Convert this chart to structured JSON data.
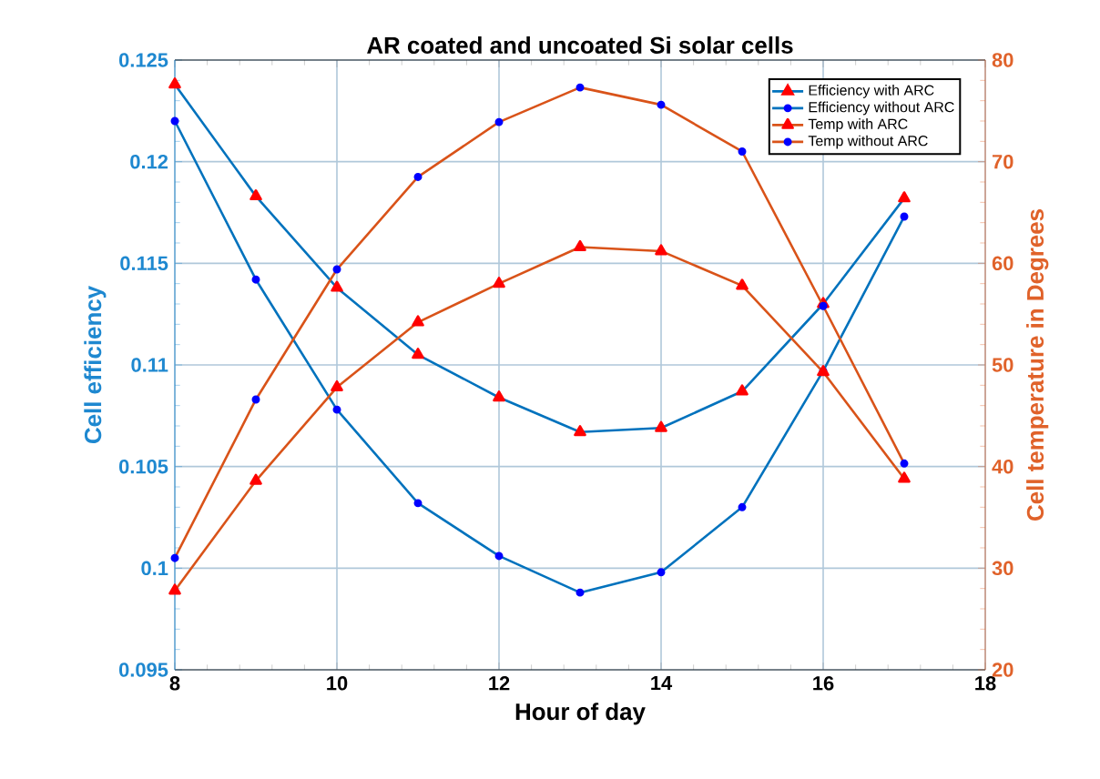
{
  "chart_data": {
    "type": "line",
    "title": "AR coated and uncoated Si solar cells",
    "xlabel": "Hour of day",
    "ylabel": "Cell efficiency",
    "y2label": "Cell temperature in Degrees",
    "x": [
      8,
      9,
      10,
      11,
      12,
      13,
      14,
      15,
      16,
      17
    ],
    "series": [
      {
        "name": "Efficiency with ARC",
        "color": "#0072bd",
        "marker": "triangle",
        "values": [
          0.1238,
          0.1183,
          0.1138,
          0.1105,
          0.1084,
          0.1067,
          0.1069,
          0.1087,
          0.113,
          0.1182
        ]
      },
      {
        "name": "Efficiency without ARC",
        "color": "#0072bd",
        "marker": "circle",
        "values": [
          0.122,
          0.1142,
          0.1078,
          0.1032,
          0.1006,
          0.0988,
          0.0998,
          0.103,
          0.1097,
          0.1173
        ]
      },
      {
        "name": "Temp with ARC",
        "color": "#d95319",
        "marker": "triangle",
        "axis": "y2",
        "values": [
          27.8,
          38.6,
          47.8,
          54.2,
          58.0,
          61.6,
          61.2,
          57.8,
          49.3,
          38.8
        ]
      },
      {
        "name": "Temp without ARC",
        "color": "#d95319",
        "marker": "circle",
        "axis": "y2",
        "values": [
          31.0,
          46.6,
          59.4,
          68.5,
          73.9,
          77.3,
          75.6,
          71.0,
          55.8,
          40.3
        ]
      }
    ],
    "xlim": [
      8,
      18
    ],
    "xticks": [
      8,
      10,
      12,
      14,
      16,
      18
    ],
    "ylim": [
      0.095,
      0.125
    ],
    "yticks": [
      {
        "value": 0.095,
        "label": "0.095"
      },
      {
        "value": 0.1,
        "label": "0.1"
      },
      {
        "value": 0.105,
        "label": "0.105"
      },
      {
        "value": 0.11,
        "label": "0.11"
      },
      {
        "value": 0.115,
        "label": "0.115"
      },
      {
        "value": 0.12,
        "label": "0.12"
      },
      {
        "value": 0.125,
        "label": "0.125"
      }
    ],
    "y2lim": [
      20,
      80
    ],
    "y2ticks": [
      20,
      30,
      40,
      50,
      60,
      70,
      80
    ],
    "grid": true,
    "legend": "top right",
    "line_style": "solid"
  }
}
